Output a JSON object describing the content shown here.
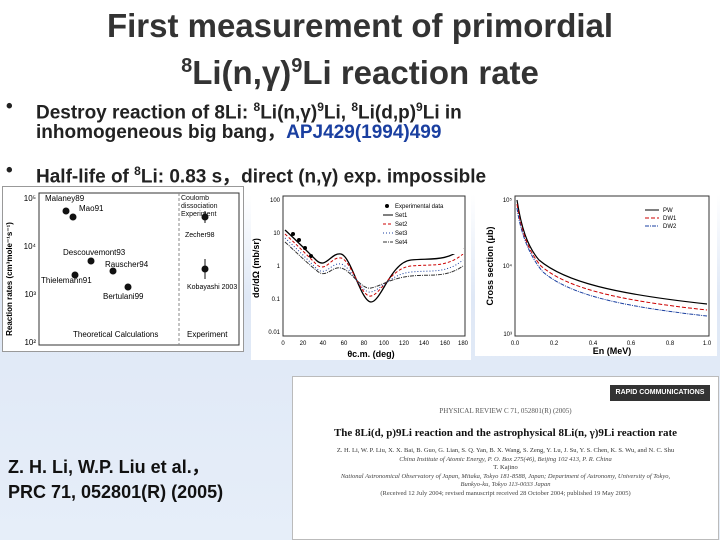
{
  "slide": {
    "title_line1": "First measurement of primordial",
    "title_pre": "8",
    "title_line2": "Li(n,γ)",
    "title_sup2": "9",
    "title_line2b": "Li reaction rate"
  },
  "bullets": {
    "b1_a": "Destroy reaction of 8Li: ",
    "b1_sup1": "8",
    "b1_b": "Li(n,γ)",
    "b1_sup2": "9",
    "b1_c": "Li, ",
    "b1_sup3": "8",
    "b1_d": "Li(d,p)",
    "b1_sup4": "9",
    "b1_e": "Li in",
    "b1_line2": "inhomogeneous big bang，",
    "b1_ref": "APJ429(1994)499",
    "b2_a": "Half-life of ",
    "b2_sup": "8",
    "b2_b": "Li:  0.83 s，direct (n,γ) exp. impossible"
  },
  "fig_left": {
    "ylabel": "Reaction rates (cm³mole⁻¹s⁻¹)",
    "yticks": [
      "10⁵",
      "10⁴",
      "10³",
      "10²"
    ],
    "labels": [
      "Malaney89",
      "Mao91",
      "Descouvemont93",
      "Rauscher94",
      "Thielemann91",
      "Bertulani99",
      "Zecher98",
      "Kobayashi 2003",
      "Coulomb dissociation Experiment",
      "Theoretical Calculations",
      "Experiment"
    ]
  },
  "fig_mid": {
    "ylabel": "dσ/dΩ (mb/sr)",
    "xlabel": "θc.m. (deg)",
    "yticks": [
      "100",
      "10",
      "1",
      "0.1",
      "0.01"
    ],
    "xticks": [
      "0",
      "20",
      "40",
      "60",
      "80",
      "100",
      "120",
      "140",
      "160",
      "180"
    ],
    "legend": [
      "Experimental data",
      "Set1",
      "Set2",
      "Set3",
      "Set4"
    ]
  },
  "fig_right": {
    "ylabel": "Cross section (μb)",
    "xlabel": "En (MeV)",
    "yticks": [
      "10⁵",
      "10⁴",
      "10³"
    ],
    "xticks": [
      "0.0",
      "0.2",
      "0.4",
      "0.6",
      "0.8",
      "1.0"
    ],
    "legend": [
      "PW",
      "DW1",
      "DW2"
    ]
  },
  "citation": {
    "line1": "Z. H. Li, W.P. Liu et al.，",
    "line2": "PRC 71, 052801(R) (2005)"
  },
  "paper": {
    "header": "RAPID COMMUNICATIONS",
    "journal": "PHYSICAL REVIEW C 71, 052801(R) (2005)",
    "title": "The 8Li(d, p)9Li reaction and the astrophysical 8Li(n, γ)9Li reaction rate",
    "authors": "Z. H. Li, W. P. Liu, X. X. Bai, B. Guo, G. Lian, S. Q. Yan, B. X. Wang, S. Zeng, Y. Lu, J. Su, Y. S. Chen, K. S. Wu, and N. C. Shu",
    "affil1": "China Institute of Atomic Energy, P. O. Box 275(46), Beijing 102 413, P. R. China",
    "author2": "T. Kajino",
    "affil2": "National Astronomical Observatory of Japan, Mitaka, Tokyo 181-8588, Japan; Department of Astronomy, University of Tokyo, Bunkyo-ku, Tokyo 113-0033 Japan",
    "dates": "(Received 12 July 2004; revised manuscript received 28 October 2004; published 19 May 2005)"
  }
}
